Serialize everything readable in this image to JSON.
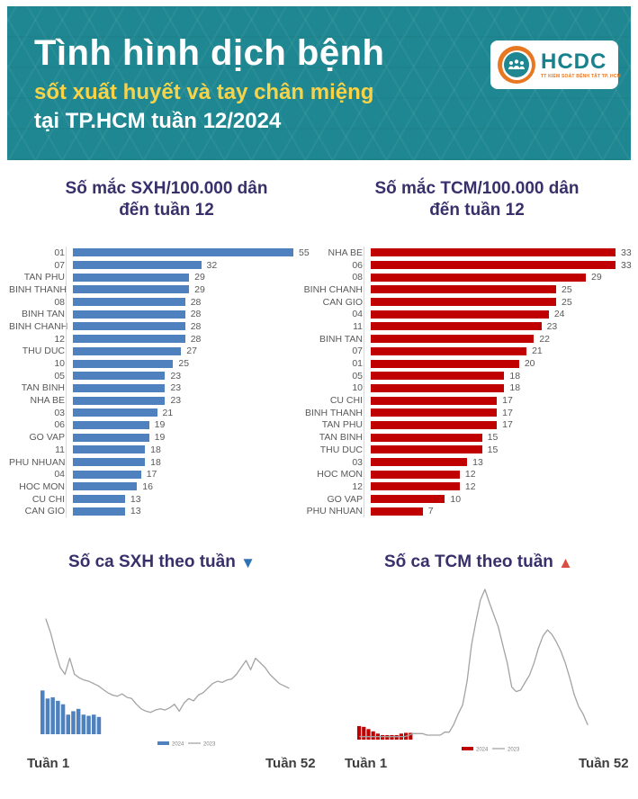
{
  "header": {
    "title": "Tình hình dịch bệnh",
    "subtitle": "sốt xuất huyết và tay chân miệng",
    "line3": "tại TP.HCM tuần 12/2024",
    "logo": {
      "name": "HCDC",
      "tagline": "TT KIỂM SOÁT BỆNH TẬT TP. HCM"
    }
  },
  "colors": {
    "banner_teal": "#1f8791",
    "subtitle_yellow": "#f8d348",
    "chart_title_indigo": "#38306b",
    "bar_blue": "#4e81bd",
    "bar_red": "#c00000",
    "line_gray": "#a3a3a3",
    "label_gray": "#595959",
    "trend_down_blue": "#2e74b5",
    "trend_up_red": "#d94f43",
    "logo_orange": "#e87722"
  },
  "chart_data": [
    {
      "id": "sxh_rate",
      "type": "bar",
      "orientation": "horizontal",
      "title": "Số mắc SXH/100.000 dân đến tuần 12",
      "title_lines": [
        "Số mắc SXH/100.000 dân",
        "đến tuần 12"
      ],
      "color": "#4e81bd",
      "xlim": [
        0,
        60
      ],
      "categories": [
        "01",
        "07",
        "TAN PHU",
        "BINH THANH",
        "08",
        "BINH TAN",
        "BINH CHANH",
        "12",
        "THU DUC",
        "10",
        "05",
        "TAN BINH",
        "NHA BE",
        "03",
        "06",
        "GO VAP",
        "11",
        "PHU NHUAN",
        "04",
        "HOC MON",
        "CU CHI",
        "CAN GIO"
      ],
      "values": [
        55,
        32,
        29,
        29,
        28,
        28,
        28,
        28,
        27,
        25,
        23,
        23,
        23,
        21,
        19,
        19,
        18,
        18,
        17,
        16,
        13,
        13
      ]
    },
    {
      "id": "tcm_rate",
      "type": "bar",
      "orientation": "horizontal",
      "title": "Số mắc TCM/100.000 dân đến tuần 12",
      "title_lines": [
        "Số mắc TCM/100.000 dân",
        "đến tuần 12"
      ],
      "color": "#c00000",
      "xlim": [
        0,
        36
      ],
      "categories": [
        "NHA BE",
        "06",
        "08",
        "BINH CHANH",
        "CAN GIO",
        "04",
        "11",
        "BINH TAN",
        "07",
        "01",
        "05",
        "10",
        "CU CHI",
        "BINH THANH",
        "TAN PHU",
        "TAN BINH",
        "THU DUC",
        "03",
        "HOC MON",
        "12",
        "GO VAP",
        "PHU NHUAN"
      ],
      "values": [
        33,
        33,
        29,
        25,
        25,
        24,
        23,
        22,
        21,
        20,
        18,
        18,
        17,
        17,
        17,
        15,
        15,
        13,
        12,
        12,
        10,
        7
      ]
    },
    {
      "id": "sxh_weekly",
      "type": "line",
      "title": "Số ca SXH theo tuần",
      "trend": "down",
      "trend_icon": "▼",
      "trend_color": "#2e74b5",
      "x_axis": {
        "start_label": "Tuần 1",
        "end_label": "Tuần 52",
        "weeks": 52
      },
      "y_note": "relative scale 0-100, no axis shown",
      "legend": [
        "2024",
        "2023"
      ],
      "series": [
        {
          "name": "2024",
          "type": "bar",
          "color": "#4e81bd",
          "values": [
            38,
            31,
            32,
            29,
            26,
            17,
            20,
            22,
            17,
            16,
            17,
            15
          ]
        },
        {
          "name": "2023",
          "type": "line",
          "color": "#a3a3a3",
          "values": [
            100,
            88,
            72,
            58,
            52,
            66,
            52,
            49,
            47,
            46,
            44,
            42,
            39,
            36,
            34,
            33,
            35,
            32,
            31,
            26,
            22,
            20,
            19,
            21,
            22,
            21,
            23,
            26,
            20,
            27,
            31,
            29,
            34,
            36,
            40,
            44,
            46,
            45,
            47,
            48,
            52,
            58,
            64,
            56,
            66,
            62,
            58,
            52,
            48,
            44,
            42,
            40
          ]
        }
      ]
    },
    {
      "id": "tcm_weekly",
      "type": "line",
      "title": "Số ca TCM theo tuần",
      "trend": "up",
      "trend_icon": "▲",
      "trend_color": "#d94f43",
      "x_axis": {
        "start_label": "Tuần 1",
        "end_label": "Tuần 52",
        "weeks": 52
      },
      "y_note": "relative scale 0-100, no axis shown",
      "legend": [
        "2024",
        "2023"
      ],
      "series": [
        {
          "name": "2024",
          "type": "bar",
          "color": "#c00000",
          "values": [
            9,
            8.5,
            7,
            5.5,
            4,
            3,
            3,
            3,
            3,
            4,
            4.5,
            4.5
          ]
        },
        {
          "name": "2023",
          "type": "line",
          "color": "#a3a3a3",
          "values": [
            2,
            2,
            2,
            2,
            2,
            2,
            2,
            2,
            2,
            2,
            2,
            3,
            4,
            4,
            4,
            3,
            3,
            3,
            3,
            5,
            5,
            10,
            17,
            23,
            39,
            63,
            79,
            93,
            100,
            91,
            83,
            75,
            63,
            51,
            35,
            32,
            33,
            38,
            43,
            51,
            61,
            69,
            73,
            70,
            65,
            59,
            51,
            41,
            30,
            22,
            17,
            10
          ]
        }
      ]
    }
  ]
}
